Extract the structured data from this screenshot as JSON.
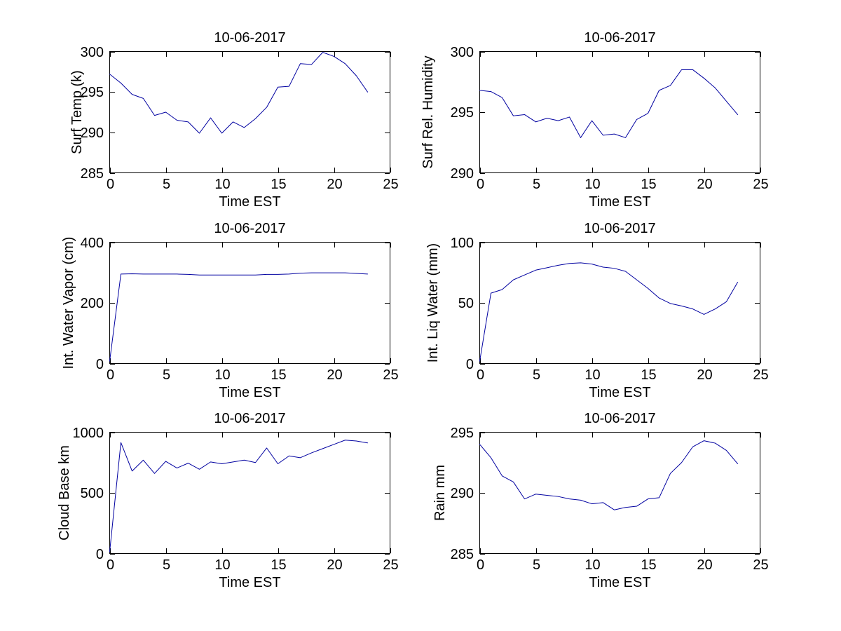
{
  "figure": {
    "background": "#ffffff",
    "line_color": "#0000a0",
    "axis_color": "#000000",
    "text_color": "#000000"
  },
  "chart_data": [
    {
      "type": "line",
      "title": "10-06-2017",
      "xlabel": "Time EST",
      "ylabel": "Surf Temp (k)",
      "xlim": [
        0,
        25
      ],
      "ylim": [
        285,
        300
      ],
      "xticks": [
        0,
        5,
        10,
        15,
        20,
        25
      ],
      "yticks": [
        285,
        290,
        295,
        300
      ],
      "grid": false,
      "legend": null,
      "x": [
        0,
        1,
        2,
        3,
        4,
        5,
        6,
        7,
        8,
        9,
        10,
        11,
        12,
        13,
        14,
        15,
        16,
        17,
        18,
        19,
        20,
        21,
        22,
        23
      ],
      "y": [
        297.2,
        296.1,
        294.7,
        294.2,
        292.1,
        292.5,
        291.5,
        291.3,
        289.9,
        291.8,
        289.9,
        291.3,
        290.6,
        291.7,
        293.1,
        295.6,
        295.7,
        298.5,
        298.4,
        299.9,
        299.4,
        298.5,
        297.0,
        295.0
      ]
    },
    {
      "type": "line",
      "title": "10-06-2017",
      "xlabel": "Time EST",
      "ylabel": "Surf Rel. Humidity",
      "xlim": [
        0,
        25
      ],
      "ylim": [
        290,
        300
      ],
      "xticks": [
        0,
        5,
        10,
        15,
        20,
        25
      ],
      "yticks": [
        290,
        295,
        300
      ],
      "grid": false,
      "legend": null,
      "x": [
        0,
        1,
        2,
        3,
        4,
        5,
        6,
        7,
        8,
        9,
        10,
        11,
        12,
        13,
        14,
        15,
        16,
        17,
        18,
        19,
        20,
        21,
        22,
        23
      ],
      "y": [
        296.8,
        296.7,
        296.2,
        294.7,
        294.8,
        294.2,
        294.5,
        294.3,
        294.6,
        292.9,
        294.3,
        293.1,
        293.2,
        292.9,
        294.4,
        294.9,
        296.8,
        297.2,
        298.5,
        298.5,
        297.8,
        297.0,
        295.9,
        294.8
      ]
    },
    {
      "type": "line",
      "title": "10-06-2017",
      "xlabel": "Time EST",
      "ylabel": "Int. Water Vapor (cm)",
      "xlim": [
        0,
        25
      ],
      "ylim": [
        0,
        400
      ],
      "xticks": [
        0,
        5,
        10,
        15,
        20,
        25
      ],
      "yticks": [
        0,
        200,
        400
      ],
      "grid": false,
      "legend": null,
      "x": [
        0,
        1,
        2,
        3,
        4,
        5,
        6,
        7,
        8,
        9,
        10,
        11,
        12,
        13,
        14,
        15,
        16,
        17,
        18,
        19,
        20,
        21,
        22,
        23
      ],
      "y": [
        8,
        295,
        296,
        295,
        295,
        295,
        295,
        294,
        292,
        292,
        292,
        292,
        292,
        292,
        294,
        294,
        295,
        298,
        299,
        299,
        299,
        299,
        297,
        295
      ]
    },
    {
      "type": "line",
      "title": "10-06-2017",
      "xlabel": "Time EST",
      "ylabel": "Int. Liq Water (mm)",
      "xlim": [
        0,
        25
      ],
      "ylim": [
        0,
        100
      ],
      "xticks": [
        0,
        5,
        10,
        15,
        20,
        25
      ],
      "yticks": [
        0,
        50,
        100
      ],
      "grid": false,
      "legend": null,
      "x": [
        0,
        1,
        2,
        3,
        4,
        5,
        6,
        7,
        8,
        9,
        10,
        11,
        12,
        13,
        14,
        15,
        16,
        17,
        18,
        19,
        20,
        21,
        22,
        23
      ],
      "y": [
        2,
        58,
        61,
        69,
        73,
        77,
        79,
        81,
        82.5,
        83,
        82,
        79.5,
        78.5,
        76,
        69,
        62,
        54,
        49.5,
        47.5,
        45,
        40.5,
        45,
        51,
        67
      ]
    },
    {
      "type": "line",
      "title": "10-06-2017",
      "xlabel": "Time EST",
      "ylabel": "Cloud Base km",
      "xlim": [
        0,
        25
      ],
      "ylim": [
        0,
        1000
      ],
      "xticks": [
        0,
        5,
        10,
        15,
        20,
        25
      ],
      "yticks": [
        0,
        500,
        1000
      ],
      "grid": false,
      "legend": null,
      "x": [
        0,
        1,
        2,
        3,
        4,
        5,
        6,
        7,
        8,
        9,
        10,
        11,
        12,
        13,
        14,
        15,
        16,
        17,
        18,
        19,
        20,
        21,
        22,
        23
      ],
      "y": [
        15,
        915,
        680,
        770,
        660,
        760,
        705,
        745,
        695,
        755,
        740,
        755,
        770,
        750,
        870,
        740,
        805,
        790,
        830,
        865,
        900,
        935,
        928,
        912
      ]
    },
    {
      "type": "line",
      "title": "10-06-2017",
      "xlabel": "Time EST",
      "ylabel": "Rain mm",
      "xlim": [
        0,
        25
      ],
      "ylim": [
        285,
        295
      ],
      "xticks": [
        0,
        5,
        10,
        15,
        20,
        25
      ],
      "yticks": [
        285,
        290,
        295
      ],
      "grid": false,
      "legend": null,
      "x": [
        0,
        1,
        2,
        3,
        4,
        5,
        6,
        7,
        8,
        9,
        10,
        11,
        12,
        13,
        14,
        15,
        16,
        17,
        18,
        19,
        20,
        21,
        22,
        23
      ],
      "y": [
        294.0,
        292.9,
        291.4,
        290.9,
        289.5,
        289.9,
        289.8,
        289.7,
        289.5,
        289.4,
        289.1,
        289.2,
        288.6,
        288.8,
        288.9,
        289.5,
        289.6,
        291.6,
        292.5,
        293.8,
        294.3,
        294.1,
        293.5,
        292.4
      ]
    }
  ]
}
